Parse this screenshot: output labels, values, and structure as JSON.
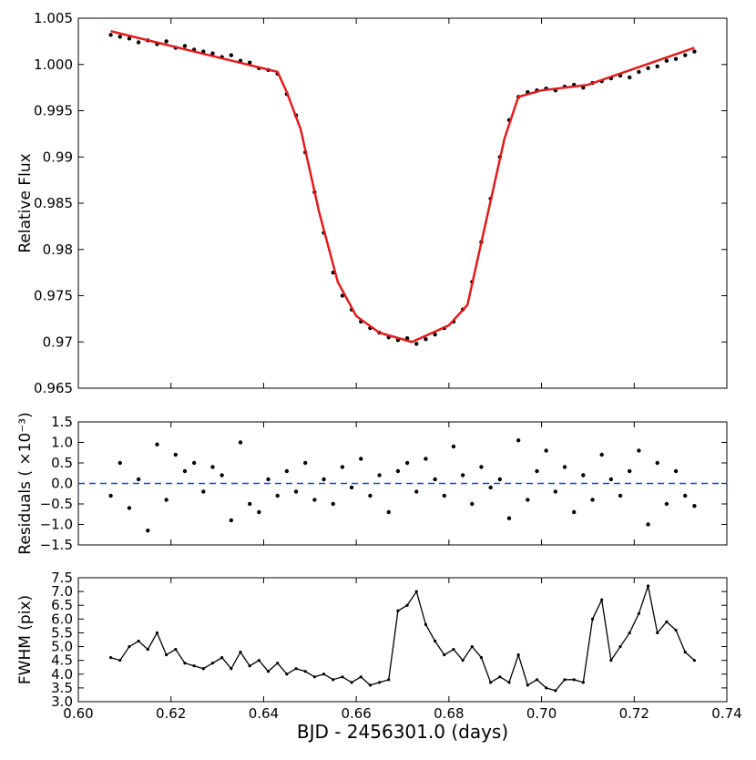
{
  "chart_data": [
    {
      "type": "scatter",
      "ylabel": "Relative Flux",
      "xlim": [
        0.6,
        0.74
      ],
      "xticks": [
        {
          "value": 0.6,
          "label": "0.60"
        },
        {
          "value": 0.62,
          "label": "0.62"
        },
        {
          "value": 0.64,
          "label": "0.64"
        },
        {
          "value": 0.66,
          "label": "0.66"
        },
        {
          "value": 0.68,
          "label": "0.68"
        },
        {
          "value": 0.7,
          "label": "0.70"
        },
        {
          "value": 0.72,
          "label": "0.72"
        },
        {
          "value": 0.74,
          "label": "0.74"
        }
      ],
      "ylim": [
        0.965,
        1.005
      ],
      "yticks": [
        0.965,
        0.97,
        0.975,
        0.98,
        0.985,
        0.99,
        0.995,
        {
          "value": 1.0,
          "label": "1.000"
        },
        1.005
      ],
      "series": [
        {
          "color": "#000000",
          "style": "marker",
          "x": [
            0.607,
            0.609,
            0.611,
            0.613,
            0.615,
            0.617,
            0.619,
            0.621,
            0.623,
            0.625,
            0.627,
            0.629,
            0.631,
            0.633,
            0.635,
            0.637,
            0.639,
            0.641,
            0.643,
            0.645,
            0.647,
            0.649,
            0.651,
            0.653,
            0.655,
            0.657,
            0.659,
            0.661,
            0.663,
            0.665,
            0.667,
            0.669,
            0.671,
            0.673,
            0.675,
            0.677,
            0.679,
            0.681,
            0.683,
            0.685,
            0.687,
            0.689,
            0.691,
            0.693,
            0.695,
            0.697,
            0.699,
            0.701,
            0.703,
            0.705,
            0.707,
            0.709,
            0.711,
            0.713,
            0.715,
            0.717,
            0.719,
            0.721,
            0.723,
            0.725,
            0.727,
            0.729,
            0.731,
            0.733
          ],
          "values": [
            1.0032,
            1.003,
            1.0028,
            1.0024,
            1.0026,
            1.0022,
            1.0025,
            1.0018,
            1.002,
            1.0016,
            1.0014,
            1.0012,
            1.0008,
            1.001,
            1.0004,
            1.0002,
            0.9996,
            0.9994,
            0.999,
            0.9968,
            0.9945,
            0.9905,
            0.9862,
            0.9818,
            0.9775,
            0.975,
            0.9735,
            0.9722,
            0.9715,
            0.971,
            0.9705,
            0.9702,
            0.9704,
            0.9698,
            0.9703,
            0.9708,
            0.9715,
            0.9722,
            0.9735,
            0.9765,
            0.9808,
            0.9855,
            0.99,
            0.994,
            0.9965,
            0.997,
            0.9972,
            0.9974,
            0.9972,
            0.9976,
            0.9978,
            0.9975,
            0.998,
            0.9982,
            0.9985,
            0.9988,
            0.9986,
            0.9992,
            0.9996,
            0.9998,
            1.0004,
            1.0006,
            1.001,
            1.0014
          ]
        },
        {
          "color": "#e31a1c",
          "style": "line",
          "x": [
            0.607,
            0.643,
            0.645,
            0.648,
            0.652,
            0.656,
            0.66,
            0.665,
            0.672,
            0.68,
            0.684,
            0.688,
            0.692,
            0.695,
            0.7,
            0.71,
            0.733
          ],
          "values": [
            1.0036,
            0.9992,
            0.997,
            0.993,
            0.984,
            0.9765,
            0.9728,
            0.971,
            0.97,
            0.9718,
            0.974,
            0.983,
            0.992,
            0.9965,
            0.9972,
            0.9978,
            1.0018
          ]
        }
      ]
    },
    {
      "type": "scatter",
      "ylabel": "Residuals ( ×10⁻³)",
      "xlim": [
        0.6,
        0.74
      ],
      "xticks": [
        0.6,
        0.62,
        0.64,
        0.66,
        0.68,
        0.7,
        0.72,
        0.74
      ],
      "ylim": [
        -1.5,
        1.5
      ],
      "yticks": [
        {
          "value": -1.5,
          "label": "−1.5"
        },
        {
          "value": -1.0,
          "label": "−1.0"
        },
        {
          "value": -0.5,
          "label": "−0.5"
        },
        {
          "value": 0.0,
          "label": "0.0"
        },
        0.5,
        {
          "value": 1.0,
          "label": "1.0"
        },
        1.5
      ],
      "hline": {
        "value": 0,
        "color": "#1f3fd6"
      },
      "series": [
        {
          "color": "#000000",
          "style": "marker",
          "x": [
            0.607,
            0.609,
            0.611,
            0.613,
            0.615,
            0.617,
            0.619,
            0.621,
            0.623,
            0.625,
            0.627,
            0.629,
            0.631,
            0.633,
            0.635,
            0.637,
            0.639,
            0.641,
            0.643,
            0.645,
            0.647,
            0.649,
            0.651,
            0.653,
            0.655,
            0.657,
            0.659,
            0.661,
            0.663,
            0.665,
            0.667,
            0.669,
            0.671,
            0.673,
            0.675,
            0.677,
            0.679,
            0.681,
            0.683,
            0.685,
            0.687,
            0.689,
            0.691,
            0.693,
            0.695,
            0.697,
            0.699,
            0.701,
            0.703,
            0.705,
            0.707,
            0.709,
            0.711,
            0.713,
            0.715,
            0.717,
            0.719,
            0.721,
            0.723,
            0.725,
            0.727,
            0.729,
            0.731,
            0.733
          ],
          "values": [
            -0.3,
            0.5,
            -0.6,
            0.1,
            -1.15,
            0.95,
            -0.4,
            0.7,
            0.3,
            0.5,
            -0.2,
            0.4,
            0.2,
            -0.9,
            1.0,
            -0.5,
            -0.7,
            0.1,
            -0.3,
            0.3,
            -0.2,
            0.5,
            -0.4,
            0.1,
            -0.5,
            0.4,
            -0.1,
            0.6,
            -0.3,
            0.2,
            -0.7,
            0.3,
            0.5,
            -0.2,
            0.6,
            0.1,
            -0.3,
            0.9,
            0.2,
            -0.5,
            0.4,
            -0.1,
            0.1,
            -0.85,
            1.05,
            -0.4,
            0.3,
            0.8,
            -0.2,
            0.4,
            -0.7,
            0.2,
            -0.4,
            0.7,
            0.1,
            -0.3,
            0.3,
            0.8,
            -1.0,
            0.5,
            -0.5,
            0.3,
            -0.3,
            -0.55
          ]
        }
      ]
    },
    {
      "type": "line",
      "ylabel": "FWHM (pix)",
      "xlabel": "BJD - 2456301.0 (days)",
      "xlim": [
        0.6,
        0.74
      ],
      "xticks": [
        {
          "value": 0.6,
          "label": "0.60"
        },
        {
          "value": 0.62,
          "label": "0.62"
        },
        {
          "value": 0.64,
          "label": "0.64"
        },
        {
          "value": 0.66,
          "label": "0.66"
        },
        {
          "value": 0.68,
          "label": "0.68"
        },
        {
          "value": 0.7,
          "label": "0.70"
        },
        {
          "value": 0.72,
          "label": "0.72"
        },
        {
          "value": 0.74,
          "label": "0.74"
        }
      ],
      "ylim": [
        3.0,
        7.5
      ],
      "yticks": [
        {
          "value": 3.0,
          "label": "3.0"
        },
        3.5,
        {
          "value": 4.0,
          "label": "4.0"
        },
        4.5,
        {
          "value": 5.0,
          "label": "5.0"
        },
        5.5,
        {
          "value": 6.0,
          "label": "6.0"
        },
        6.5,
        {
          "value": 7.0,
          "label": "7.0"
        },
        7.5
      ],
      "series": [
        {
          "color": "#000000",
          "style": "linemarker",
          "x": [
            0.607,
            0.609,
            0.611,
            0.613,
            0.615,
            0.617,
            0.619,
            0.621,
            0.623,
            0.625,
            0.627,
            0.629,
            0.631,
            0.633,
            0.635,
            0.637,
            0.639,
            0.641,
            0.643,
            0.645,
            0.647,
            0.649,
            0.651,
            0.653,
            0.655,
            0.657,
            0.659,
            0.661,
            0.663,
            0.665,
            0.667,
            0.669,
            0.671,
            0.673,
            0.675,
            0.677,
            0.679,
            0.681,
            0.683,
            0.685,
            0.687,
            0.689,
            0.691,
            0.693,
            0.695,
            0.697,
            0.699,
            0.701,
            0.703,
            0.705,
            0.707,
            0.709,
            0.711,
            0.713,
            0.715,
            0.717,
            0.719,
            0.721,
            0.723,
            0.725,
            0.727,
            0.729,
            0.731,
            0.733
          ],
          "values": [
            4.6,
            4.5,
            5.0,
            5.2,
            4.9,
            5.5,
            4.7,
            4.9,
            4.4,
            4.3,
            4.2,
            4.4,
            4.6,
            4.2,
            4.8,
            4.3,
            4.5,
            4.1,
            4.4,
            4.0,
            4.2,
            4.1,
            3.9,
            4.0,
            3.8,
            3.9,
            3.7,
            3.9,
            3.6,
            3.7,
            3.8,
            6.3,
            6.5,
            7.0,
            5.8,
            5.2,
            4.7,
            4.9,
            4.5,
            5.0,
            4.6,
            3.7,
            3.9,
            3.7,
            4.7,
            3.6,
            3.8,
            3.5,
            3.4,
            3.8,
            3.8,
            3.7,
            6.0,
            6.7,
            4.5,
            5.0,
            5.5,
            6.2,
            7.2,
            5.5,
            5.9,
            5.6,
            4.8,
            4.5
          ]
        }
      ]
    }
  ]
}
